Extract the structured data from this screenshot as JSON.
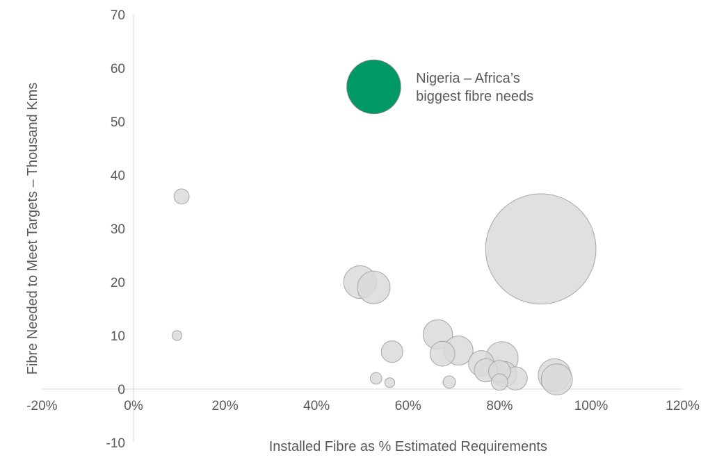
{
  "chart_data": {
    "type": "scatter",
    "variant": "bubble",
    "xlabel": "Installed Fibre as % Estimated Requirements",
    "ylabel": "Fibre Needed to Meet Targets – Thousand Kms",
    "xlim": [
      -20,
      120
    ],
    "ylim": [
      -10,
      70
    ],
    "x_ticks": [
      -20,
      0,
      20,
      40,
      60,
      80,
      100,
      120
    ],
    "x_tick_labels": [
      "-20%",
      "0%",
      "20%",
      "40%",
      "60%",
      "80%",
      "100%",
      "120%"
    ],
    "y_ticks": [
      -10,
      0,
      10,
      20,
      30,
      40,
      50,
      60,
      70
    ],
    "y_tick_labels": [
      "-10",
      "0",
      "10",
      "20",
      "30",
      "40",
      "50",
      "60",
      "70"
    ],
    "grid": false,
    "colors": {
      "bubble_fill": "#d9d9d9",
      "bubble_stroke": "#a6a6a6",
      "highlight_fill": "#009966",
      "highlight_stroke": "#7f7f7f",
      "axis": "#d9d9d9",
      "text": "#595959"
    },
    "points": [
      {
        "x": 10.5,
        "y": 36,
        "size": 1.2
      },
      {
        "x": 9.5,
        "y": 10,
        "size": 0.5
      },
      {
        "x": 49.5,
        "y": 20,
        "size": 5.5
      },
      {
        "x": 52.5,
        "y": 19,
        "size": 5.5
      },
      {
        "x": 56.5,
        "y": 7,
        "size": 2.4
      },
      {
        "x": 53,
        "y": 2,
        "size": 0.7
      },
      {
        "x": 56,
        "y": 1.2,
        "size": 0.5
      },
      {
        "x": 66.5,
        "y": 10.2,
        "size": 4.5
      },
      {
        "x": 67.5,
        "y": 6.6,
        "size": 3.2
      },
      {
        "x": 71,
        "y": 7.2,
        "size": 4.4
      },
      {
        "x": 69,
        "y": 1.3,
        "size": 0.8
      },
      {
        "x": 76,
        "y": 4.8,
        "size": 3.4
      },
      {
        "x": 77,
        "y": 3.5,
        "size": 2.8
      },
      {
        "x": 80.5,
        "y": 5.8,
        "size": 5.5
      },
      {
        "x": 80,
        "y": 3.3,
        "size": 2.5
      },
      {
        "x": 81,
        "y": 2.8,
        "size": 3.3
      },
      {
        "x": 80,
        "y": 1.3,
        "size": 1.4
      },
      {
        "x": 83.5,
        "y": 2,
        "size": 2.8
      },
      {
        "x": 92,
        "y": 2.6,
        "size": 5.5
      },
      {
        "x": 92.5,
        "y": 1.8,
        "size": 5.0
      },
      {
        "x": 89,
        "y": 26.2,
        "size": 63
      }
    ],
    "highlight": {
      "x": 52.5,
      "y": 56.5,
      "size": 15,
      "label_line1": "Nigeria – Africa’s",
      "label_line2": "biggest fibre needs"
    }
  }
}
